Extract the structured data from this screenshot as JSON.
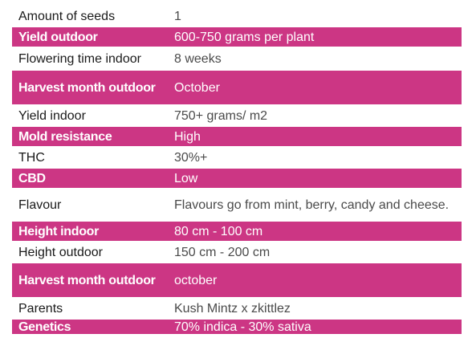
{
  "colors": {
    "highlight_row": "#cc3684",
    "highlight_text": "#ffffff",
    "label_text": "#1a1a1a",
    "value_text": "#4a4a4a"
  },
  "rows": [
    {
      "label": "Amount of seeds",
      "value": "1"
    },
    {
      "label": "Yield outdoor",
      "value": "600-750 grams per plant"
    },
    {
      "label": "Flowering time indoor",
      "value": "8 weeks"
    },
    {
      "label": "Harvest month outdoor",
      "value": "October"
    },
    {
      "label": "Yield indoor",
      "value": "750+ grams/ m2"
    },
    {
      "label": "Mold resistance",
      "value": "High"
    },
    {
      "label": "THC",
      "value": "30%+"
    },
    {
      "label": "CBD",
      "value": "Low"
    },
    {
      "label": "Flavour",
      "value": "Flavours go from mint, berry, candy and cheese."
    },
    {
      "label": "Height indoor",
      "value": "80 cm - 100 cm"
    },
    {
      "label": "Height outdoor",
      "value": "150 cm - 200 cm"
    },
    {
      "label": "Harvest month outdoor",
      "value": "october"
    },
    {
      "label": "Parents",
      "value": "Kush Mintz x zkittlez"
    },
    {
      "label": "Genetics",
      "value": "70% indica - 30% sativa"
    }
  ]
}
